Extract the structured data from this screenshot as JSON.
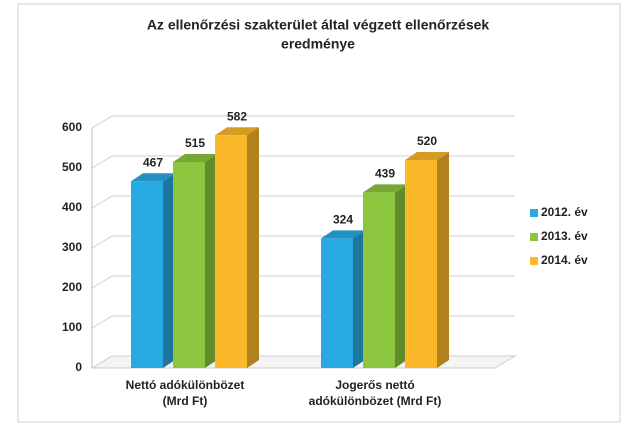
{
  "chart_data": {
    "type": "bar3d",
    "title": [
      "Az ellenőrzési szakterület által végzett ellenőrzések",
      "eredménye"
    ],
    "categories": [
      [
        "Nettó adókülönbözet",
        "(Mrd Ft)"
      ],
      [
        "Jogerős nettó",
        "adókülönbözet (Mrd Ft)"
      ]
    ],
    "series": [
      {
        "name": "2012. év",
        "color": "#29a9e1",
        "values": [
          467,
          324
        ]
      },
      {
        "name": "2013. év",
        "color": "#8cc63f",
        "values": [
          515,
          439
        ]
      },
      {
        "name": "2014. év",
        "color": "#fbb829",
        "values": [
          582,
          520
        ]
      }
    ],
    "ylim": [
      0,
      600
    ],
    "yticks": [
      0,
      100,
      200,
      300,
      400,
      500,
      600
    ],
    "grid": true,
    "legend": "right"
  }
}
